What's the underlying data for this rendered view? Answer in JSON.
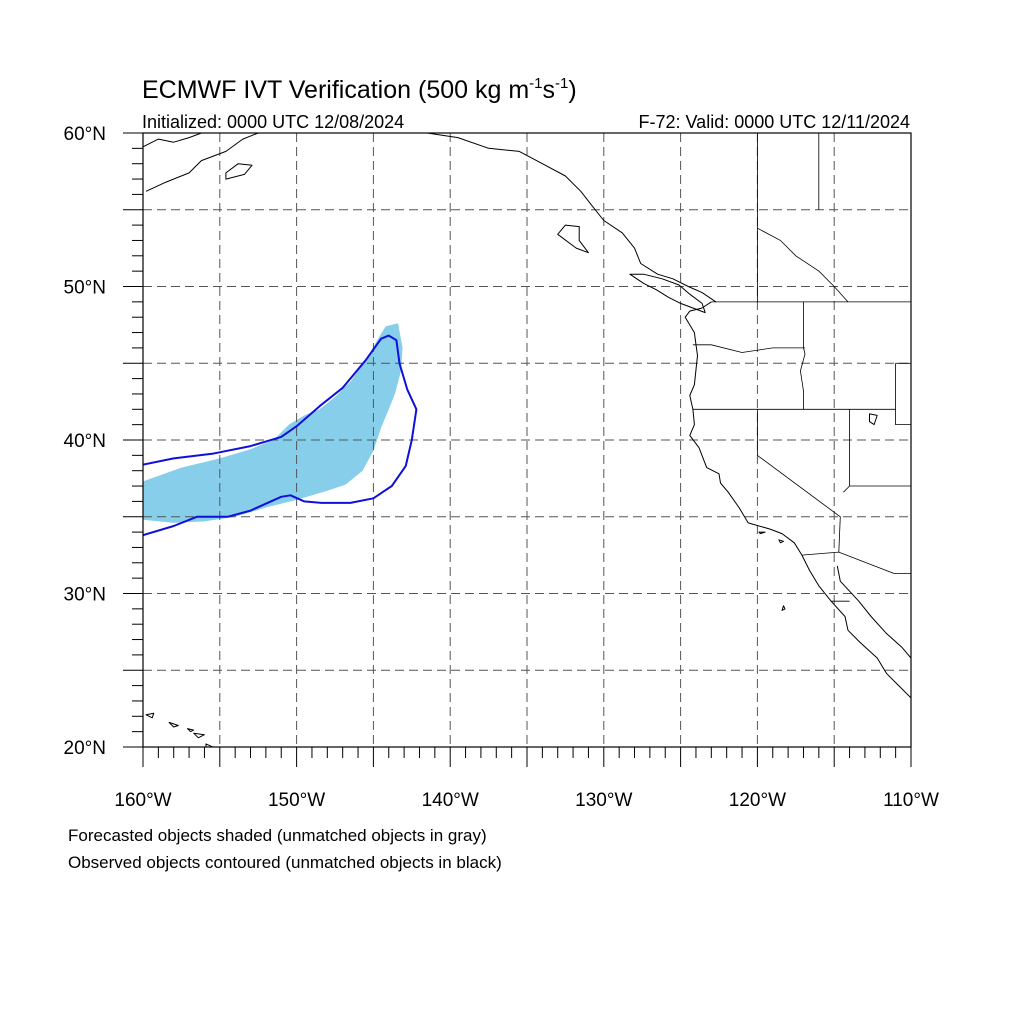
{
  "title": {
    "main": "ECMWF IVT Verification (500 kg m",
    "exp1": "-1",
    "mid": "s",
    "exp2": "-1",
    "end": ")"
  },
  "initialized": "Initialized: 0000 UTC 12/08/2024",
  "valid": "F-72: Valid: 0000 UTC 12/11/2024",
  "map": {
    "projection": "cylindrical equidistant",
    "lon_range": [
      -160,
      -110
    ],
    "lat_range": [
      20,
      60
    ],
    "grid": "dashed, every 5 degrees",
    "lon_labels": [
      {
        "lon": -160,
        "label": "160°W"
      },
      {
        "lon": -150,
        "label": "150°W"
      },
      {
        "lon": -140,
        "label": "140°W"
      },
      {
        "lon": -130,
        "label": "130°W"
      },
      {
        "lon": -120,
        "label": "120°W"
      },
      {
        "lon": -110,
        "label": "110°W"
      }
    ],
    "lat_labels": [
      {
        "lat": 60,
        "label": "60°N"
      },
      {
        "lat": 50,
        "label": "50°N"
      },
      {
        "lat": 40,
        "label": "40°N"
      },
      {
        "lat": 30,
        "label": "30°N"
      },
      {
        "lat": 20,
        "label": "20°N"
      }
    ],
    "colors": {
      "forecast_fill": "#87ceeb",
      "observed_contour": "#1010d8",
      "coastline": "#000000",
      "grid": "#555555"
    }
  },
  "forecast_object": [
    [
      -160,
      37.3
    ],
    [
      -157.5,
      38.2
    ],
    [
      -155,
      38.8
    ],
    [
      -153,
      39.4
    ],
    [
      -151.5,
      40.0
    ],
    [
      -150.5,
      41.0
    ],
    [
      -149.5,
      41.6
    ],
    [
      -148.5,
      42.0
    ],
    [
      -147.5,
      42.8
    ],
    [
      -146.5,
      43.8
    ],
    [
      -145.5,
      45.2
    ],
    [
      -144.7,
      46.6
    ],
    [
      -144.2,
      47.4
    ],
    [
      -143.4,
      47.6
    ],
    [
      -143.1,
      46.0
    ],
    [
      -143.2,
      44.5
    ],
    [
      -143.6,
      43.0
    ],
    [
      -144.0,
      42.0
    ],
    [
      -144.5,
      40.8
    ],
    [
      -145.0,
      39.3
    ],
    [
      -145.7,
      38.0
    ],
    [
      -146.8,
      37.1
    ],
    [
      -148,
      36.7
    ],
    [
      -150,
      36.1
    ],
    [
      -152,
      35.6
    ],
    [
      -154,
      35.0
    ],
    [
      -156,
      34.7
    ],
    [
      -158,
      34.6
    ],
    [
      -160,
      34.8
    ]
  ],
  "observed_object": [
    [
      -160,
      38.4
    ],
    [
      -158,
      38.8
    ],
    [
      -155.5,
      39.1
    ],
    [
      -153,
      39.6
    ],
    [
      -151,
      40.2
    ],
    [
      -150,
      40.9
    ],
    [
      -148.5,
      42.2
    ],
    [
      -147,
      43.4
    ],
    [
      -145.5,
      45.2
    ],
    [
      -144.5,
      46.6
    ],
    [
      -144.0,
      46.8
    ],
    [
      -143.5,
      46.5
    ],
    [
      -143.3,
      45.0
    ],
    [
      -142.8,
      43.3
    ],
    [
      -142.2,
      42.0
    ],
    [
      -142.5,
      40.0
    ],
    [
      -142.9,
      38.3
    ],
    [
      -143.8,
      37.0
    ],
    [
      -145.0,
      36.2
    ],
    [
      -146.5,
      35.9
    ],
    [
      -147.8,
      35.9
    ],
    [
      -148.4,
      35.9
    ],
    [
      -149.5,
      36.0
    ],
    [
      -150.4,
      36.4
    ],
    [
      -151,
      36.3
    ],
    [
      -153.0,
      35.4
    ],
    [
      -154.5,
      35.0
    ],
    [
      -156.5,
      35.0
    ],
    [
      -158.0,
      34.4
    ],
    [
      -160,
      33.8
    ]
  ],
  "coastlines": [
    [
      [
        -123.0,
        49.0
      ],
      [
        -123.6,
        48.6
      ],
      [
        -124.4,
        48.4
      ],
      [
        -124.7,
        48.0
      ],
      [
        -124.1,
        47.0
      ],
      [
        -124.0,
        46.2
      ],
      [
        -123.9,
        45.5
      ],
      [
        -124.0,
        44.6
      ],
      [
        -124.1,
        43.6
      ],
      [
        -124.4,
        42.9
      ],
      [
        -124.2,
        42.0
      ],
      [
        -124.1,
        41.0
      ],
      [
        -124.4,
        40.3
      ],
      [
        -123.8,
        39.5
      ],
      [
        -123.3,
        38.2
      ],
      [
        -122.5,
        37.8
      ],
      [
        -122.4,
        37.2
      ],
      [
        -121.9,
        36.6
      ],
      [
        -121.2,
        35.6
      ],
      [
        -120.6,
        34.6
      ],
      [
        -119.2,
        34.2
      ],
      [
        -118.4,
        33.9
      ],
      [
        -117.6,
        33.3
      ],
      [
        -117.1,
        32.5
      ],
      [
        -116.6,
        31.5
      ],
      [
        -116.0,
        30.5
      ],
      [
        -115.2,
        29.5
      ],
      [
        -114.3,
        28.5
      ],
      [
        -114.1,
        27.6
      ],
      [
        -113.3,
        26.8
      ],
      [
        -112.2,
        25.8
      ],
      [
        -111.6,
        24.8
      ],
      [
        -110.8,
        24.0
      ],
      [
        -110.0,
        23.2
      ]
    ],
    [
      [
        -114.8,
        31.8
      ],
      [
        -114.6,
        30.8
      ],
      [
        -113.4,
        29.5
      ],
      [
        -112.6,
        28.5
      ],
      [
        -111.6,
        27.4
      ],
      [
        -110.6,
        26.5
      ],
      [
        -110.0,
        25.8
      ]
    ],
    [
      [
        -122.7,
        49.0
      ],
      [
        -123.6,
        49.6
      ],
      [
        -124.5,
        50.0
      ],
      [
        -125.5,
        50.5
      ],
      [
        -126.5,
        50.8
      ],
      [
        -127.6,
        51.5
      ],
      [
        -128.0,
        52.5
      ],
      [
        -128.8,
        53.5
      ],
      [
        -130.0,
        54.3
      ],
      [
        -130.8,
        55.3
      ],
      [
        -131.5,
        56.2
      ],
      [
        -132.5,
        57.2
      ],
      [
        -134.0,
        58.0
      ],
      [
        -135.5,
        58.8
      ],
      [
        -137.5,
        59.0
      ],
      [
        -139.5,
        59.7
      ],
      [
        -141.5,
        60.0
      ]
    ],
    [
      [
        -123.4,
        48.3
      ],
      [
        -124.2,
        48.6
      ],
      [
        -125.0,
        48.9
      ],
      [
        -125.8,
        49.3
      ],
      [
        -126.6,
        49.8
      ],
      [
        -127.4,
        50.2
      ],
      [
        -128.3,
        50.8
      ],
      [
        -127.4,
        50.8
      ],
      [
        -126.2,
        50.5
      ],
      [
        -125.1,
        50.1
      ],
      [
        -124.4,
        49.5
      ],
      [
        -123.6,
        48.9
      ],
      [
        -123.4,
        48.3
      ]
    ],
    [
      [
        -131.6,
        53.9
      ],
      [
        -132.5,
        54.0
      ],
      [
        -133.0,
        53.4
      ],
      [
        -131.8,
        52.5
      ],
      [
        -131.0,
        52.2
      ],
      [
        -131.6,
        53.0
      ],
      [
        -131.6,
        53.9
      ]
    ],
    [
      [
        -159.8,
        56.2
      ],
      [
        -158.5,
        56.8
      ],
      [
        -157.0,
        57.4
      ],
      [
        -156.2,
        58.2
      ],
      [
        -154.6,
        58.8
      ],
      [
        -153.5,
        59.6
      ],
      [
        -152.5,
        60.0
      ]
    ],
    [
      [
        -160,
        59.1
      ],
      [
        -159.0,
        59.6
      ],
      [
        -158.0,
        59.4
      ],
      [
        -157.0,
        59.7
      ],
      [
        -156.2,
        60.0
      ]
    ],
    [
      [
        -154.6,
        57.0
      ],
      [
        -153.4,
        57.3
      ],
      [
        -152.9,
        57.9
      ],
      [
        -153.8,
        58.0
      ],
      [
        -154.6,
        57.4
      ],
      [
        -154.6,
        57.0
      ]
    ],
    [
      [
        -159.8,
        22.1
      ],
      [
        -159.3,
        22.2
      ],
      [
        -159.4,
        21.9
      ],
      [
        -159.8,
        22.1
      ]
    ],
    [
      [
        -158.3,
        21.6
      ],
      [
        -157.7,
        21.4
      ],
      [
        -158.0,
        21.3
      ],
      [
        -158.3,
        21.6
      ]
    ],
    [
      [
        -157.1,
        21.2
      ],
      [
        -156.7,
        21.1
      ],
      [
        -156.9,
        21.0
      ],
      [
        -157.1,
        21.2
      ]
    ],
    [
      [
        -156.7,
        20.9
      ],
      [
        -156.0,
        20.8
      ],
      [
        -156.4,
        20.6
      ],
      [
        -156.7,
        20.9
      ]
    ],
    [
      [
        -155.9,
        20.2
      ],
      [
        -155.0,
        19.8
      ],
      [
        -155.0,
        19.4
      ],
      [
        -155.6,
        19.0
      ],
      [
        -155.9,
        19.6
      ],
      [
        -155.9,
        20.2
      ]
    ],
    [
      [
        -118.6,
        33.5
      ],
      [
        -118.3,
        33.4
      ],
      [
        -118.5,
        33.3
      ],
      [
        -118.6,
        33.5
      ]
    ],
    [
      [
        -119.9,
        34.0
      ],
      [
        -119.5,
        34.0
      ],
      [
        -119.8,
        33.9
      ],
      [
        -119.9,
        34.0
      ]
    ],
    [
      [
        -118.3,
        29.2
      ],
      [
        -118.2,
        29.0
      ],
      [
        -118.4,
        28.9
      ],
      [
        -118.3,
        29.2
      ]
    ],
    [
      [
        -112.7,
        41.7
      ],
      [
        -112.2,
        41.6
      ],
      [
        -112.4,
        41.0
      ],
      [
        -112.7,
        41.2
      ],
      [
        -112.7,
        41.7
      ]
    ]
  ],
  "boundaries": [
    [
      [
        -123.0,
        49.0
      ],
      [
        -110,
        49.0
      ]
    ],
    [
      [
        -117.0,
        49.0
      ],
      [
        -117.0,
        46.0
      ],
      [
        -116.9,
        45.6
      ],
      [
        -117.2,
        44.5
      ],
      [
        -117.0,
        43.2
      ],
      [
        -117.0,
        42.0
      ]
    ],
    [
      [
        -124.2,
        46.2
      ],
      [
        -123.0,
        46.2
      ],
      [
        -121.0,
        45.7
      ],
      [
        -119.0,
        46.0
      ],
      [
        -116.9,
        46.0
      ]
    ],
    [
      [
        -124.2,
        42.0
      ],
      [
        -111.0,
        42.0
      ]
    ],
    [
      [
        -120.0,
        42.0
      ],
      [
        -120.0,
        39.0
      ],
      [
        -114.6,
        35.0
      ],
      [
        -114.7,
        32.7
      ]
    ],
    [
      [
        -114.0,
        42.0
      ],
      [
        -114.0,
        37.0
      ],
      [
        -114.4,
        36.6
      ]
    ],
    [
      [
        -114.0,
        37.0
      ],
      [
        -110,
        37.0
      ]
    ],
    [
      [
        -111.0,
        45.0
      ],
      [
        -110,
        45.0
      ]
    ],
    [
      [
        -111.0,
        45.0
      ],
      [
        -111.0,
        41.0
      ],
      [
        -110,
        41.0
      ]
    ],
    [
      [
        -117.1,
        32.5
      ],
      [
        -114.7,
        32.7
      ],
      [
        -111.1,
        31.3
      ],
      [
        -110,
        31.3
      ]
    ],
    [
      [
        -116.0,
        55.0
      ],
      [
        -116.0,
        60.0
      ]
    ],
    [
      [
        -120.0,
        49.0
      ],
      [
        -120.0,
        60.0
      ]
    ],
    [
      [
        -120.0,
        53.8
      ],
      [
        -118.5,
        53.0
      ],
      [
        -117.5,
        52.0
      ],
      [
        -116.0,
        51.0
      ],
      [
        -115.0,
        50.0
      ],
      [
        -114.1,
        49.0
      ]
    ],
    [
      [
        -115.2,
        29.5
      ],
      [
        -114.0,
        29.5
      ]
    ]
  ],
  "notes": [
    "Forecasted objects shaded (unmatched objects in gray)",
    "Observed objects contoured (unmatched objects in black)"
  ]
}
